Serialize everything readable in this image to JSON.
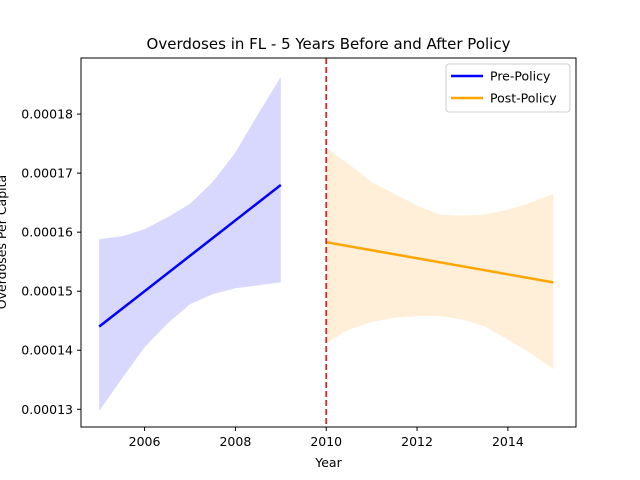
{
  "chart_data": {
    "type": "line",
    "title": "Overdoses in FL - 5 Years Before and After Policy",
    "xlabel": "Year",
    "ylabel": "Overdoses Per Capita",
    "xlim": [
      2004.6,
      2015.5
    ],
    "ylim": [
      0.000127,
      0.0001895
    ],
    "xticks": [
      2006,
      2008,
      2010,
      2012,
      2014
    ],
    "xtick_labels": [
      "2006",
      "2008",
      "2010",
      "2012",
      "2014"
    ],
    "yticks": [
      0.00013,
      0.00014,
      0.00015,
      0.00016,
      0.00017,
      0.00018
    ],
    "ytick_labels": [
      "0.00013",
      "0.00014",
      "0.00015",
      "0.00016",
      "0.00017",
      "0.00018"
    ],
    "grid": false,
    "legend_position": "top-right",
    "policy_line": {
      "x": 2010,
      "color": "#d62728",
      "style": "dashed"
    },
    "series": [
      {
        "name": "Pre-Policy",
        "color": "#0000ff",
        "band_color": "#d8d8ff",
        "x": [
          2005,
          2009
        ],
        "y": [
          0.000144,
          0.000168
        ],
        "band_x": [
          2005,
          2005.5,
          2006,
          2006.5,
          2007,
          2007.5,
          2008,
          2008.5,
          2009
        ],
        "band_upper": [
          0.0001588,
          0.0001593,
          0.0001605,
          0.0001625,
          0.0001648,
          0.0001685,
          0.0001735,
          0.00018,
          0.0001863
        ],
        "band_lower": [
          0.0001297,
          0.0001352,
          0.0001405,
          0.0001445,
          0.0001478,
          0.0001495,
          0.0001505,
          0.000151,
          0.0001515
        ]
      },
      {
        "name": "Post-Policy",
        "color": "#ffa500",
        "band_color": "#ffefd8",
        "x": [
          2010,
          2015
        ],
        "y": [
          0.0001583,
          0.0001515
        ],
        "band_x": [
          2010,
          2010.5,
          2011,
          2011.5,
          2012,
          2012.5,
          2013,
          2013.5,
          2014,
          2014.5,
          2015
        ],
        "band_upper": [
          0.0001742,
          0.0001715,
          0.0001685,
          0.0001665,
          0.0001645,
          0.000163,
          0.0001628,
          0.000163,
          0.0001638,
          0.000165,
          0.0001665
        ],
        "band_lower": [
          0.0001412,
          0.0001435,
          0.0001448,
          0.0001455,
          0.0001458,
          0.0001458,
          0.0001452,
          0.000144,
          0.0001418,
          0.0001395,
          0.0001368
        ]
      }
    ]
  }
}
